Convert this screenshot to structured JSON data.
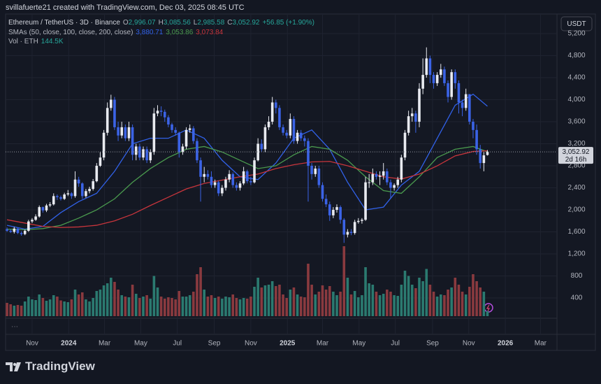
{
  "header": {
    "credit": "svillafuerte21 created with TradingView.com, Dec 03, 2025 08:45 UTC"
  },
  "chart_data": {
    "type": "candlestick",
    "title": "Ethereum / TetherUS · 3D · Binance",
    "ohlc_legend": [
      [
        "O",
        "2,996.07"
      ],
      [
        "H",
        "3,085.56"
      ],
      [
        "L",
        "2,985.58"
      ],
      [
        "C",
        "3,052.92"
      ]
    ],
    "change": "+56.85 (+1.90%)",
    "axis_unit": "USDT",
    "up_color": "#e8eaf0",
    "down_color": "#3b63e6",
    "open": [
      1650,
      1620,
      1600,
      1660,
      1580,
      1560,
      1620,
      1790,
      1820,
      1880,
      2050,
      1990,
      2080,
      2100,
      2250,
      2230,
      2200,
      2280,
      2300,
      2250,
      2550,
      2480,
      2250,
      2340,
      2380,
      2520,
      2800,
      2950,
      3400,
      3850,
      4000,
      3500,
      3350,
      3500,
      3300,
      3500,
      3000,
      3150,
      2950,
      3100,
      2900,
      3050,
      3750,
      3800,
      3780,
      3680,
      3550,
      3450,
      3400,
      3050,
      3150,
      3450,
      3480,
      3250,
      2900,
      2600,
      2650,
      2600,
      2450,
      2500,
      2300,
      2400,
      2550,
      2650,
      2450,
      2400,
      2480,
      2700,
      2520,
      2500,
      2900,
      3200,
      3100,
      3500,
      3600,
      3950,
      3850,
      3500,
      3400,
      3350,
      3650,
      3250,
      3400,
      3300,
      3250,
      2800,
      2650,
      2750,
      2450,
      2200,
      2100,
      1900,
      2000,
      2050,
      1820,
      1550,
      1600,
      1580,
      1780,
      1800,
      1820,
      2500,
      2500,
      2650,
      2600,
      2620,
      2700,
      2500,
      2400,
      2450,
      2550,
      2950,
      3400,
      3700,
      3750,
      3600,
      4200,
      4450,
      4750,
      4450,
      4300,
      4450,
      4550,
      4300,
      4050,
      4500,
      4300,
      3950,
      3850,
      4100,
      3600,
      3450,
      3100,
      2850,
      2996.07
    ],
    "high": [
      1680,
      1650,
      1690,
      1680,
      1610,
      1640,
      1820,
      1850,
      1920,
      2080,
      2060,
      2110,
      2140,
      2300,
      2280,
      2260,
      2310,
      2360,
      2320,
      2700,
      2600,
      2500,
      2380,
      2420,
      2560,
      2850,
      3050,
      3450,
      3950,
      4090,
      4050,
      3600,
      3600,
      3550,
      3600,
      3550,
      3200,
      3200,
      3150,
      3150,
      3100,
      3850,
      3900,
      3880,
      3820,
      3720,
      3580,
      3500,
      3420,
      3200,
      3500,
      3550,
      3520,
      3300,
      2950,
      2780,
      2720,
      2700,
      2550,
      2530,
      2450,
      2600,
      2720,
      2680,
      2500,
      2520,
      2780,
      2730,
      2600,
      2950,
      3300,
      3280,
      3550,
      3700,
      4050,
      4000,
      3900,
      3550,
      3450,
      3750,
      3700,
      3450,
      3450,
      3350,
      3300,
      2850,
      2800,
      2800,
      2500,
      2280,
      2150,
      2050,
      2100,
      2080,
      1850,
      1650,
      1650,
      1820,
      1850,
      1850,
      2600,
      2650,
      2750,
      2700,
      2700,
      2850,
      2750,
      2550,
      2480,
      2600,
      3000,
      3450,
      3800,
      3850,
      3800,
      4300,
      4750,
      4950,
      4800,
      4500,
      4500,
      4650,
      4600,
      4350,
      4550,
      4550,
      4350,
      4000,
      4200,
      4100,
      3650,
      3550,
      3180,
      3050,
      3085.56
    ],
    "low": [
      1600,
      1580,
      1570,
      1560,
      1530,
      1540,
      1600,
      1760,
      1800,
      1860,
      1950,
      1960,
      2050,
      2080,
      2180,
      2170,
      2180,
      2250,
      2200,
      2220,
      2420,
      2200,
      2220,
      2300,
      2350,
      2500,
      2780,
      2900,
      3350,
      3800,
      3450,
      3250,
      3300,
      3250,
      3250,
      2900,
      2900,
      2900,
      2900,
      2850,
      2850,
      3000,
      3700,
      3700,
      3600,
      3500,
      3400,
      3350,
      2950,
      3000,
      3100,
      3400,
      3200,
      2850,
      2150,
      2500,
      2550,
      2400,
      2400,
      2250,
      2250,
      2350,
      2500,
      2400,
      2350,
      2350,
      2450,
      2480,
      2450,
      2480,
      2880,
      3050,
      3050,
      3450,
      3550,
      3750,
      3450,
      3350,
      3300,
      3300,
      3200,
      3200,
      3250,
      3150,
      2150,
      2550,
      2600,
      2400,
      2150,
      2050,
      1800,
      1850,
      1950,
      1750,
      1400,
      1500,
      1540,
      1550,
      1750,
      1750,
      1800,
      2400,
      2450,
      2550,
      2450,
      2550,
      2450,
      2200,
      2350,
      2400,
      2500,
      2900,
      3350,
      3600,
      3400,
      3500,
      4100,
      4400,
      4300,
      4200,
      4250,
      4400,
      4250,
      3950,
      4000,
      4200,
      3750,
      3700,
      3800,
      3550,
      3300,
      3000,
      2750,
      2700,
      2985.58
    ],
    "close": [
      1620,
      1600,
      1660,
      1580,
      1560,
      1620,
      1790,
      1820,
      1880,
      2050,
      1990,
      2080,
      2100,
      2250,
      2230,
      2200,
      2280,
      2300,
      2250,
      2550,
      2480,
      2250,
      2340,
      2380,
      2520,
      2800,
      2950,
      3400,
      3850,
      4000,
      3500,
      3350,
      3500,
      3300,
      3500,
      3000,
      3150,
      2950,
      3100,
      2900,
      3050,
      3750,
      3800,
      3780,
      3680,
      3550,
      3450,
      3400,
      3050,
      3150,
      3450,
      3480,
      3250,
      2900,
      2600,
      2650,
      2600,
      2450,
      2500,
      2300,
      2400,
      2550,
      2650,
      2450,
      2400,
      2480,
      2700,
      2520,
      2500,
      2900,
      3200,
      3100,
      3500,
      3600,
      3950,
      3850,
      3500,
      3400,
      3350,
      3650,
      3250,
      3400,
      3300,
      3250,
      2800,
      2650,
      2750,
      2450,
      2200,
      2100,
      1900,
      2000,
      2050,
      1820,
      1550,
      1600,
      1580,
      1780,
      1800,
      1820,
      2500,
      2500,
      2650,
      2600,
      2620,
      2700,
      2500,
      2400,
      2450,
      2550,
      2950,
      3400,
      3700,
      3750,
      3600,
      4200,
      4450,
      4750,
      4450,
      4300,
      4450,
      4550,
      4300,
      4050,
      4500,
      4300,
      3950,
      3850,
      4100,
      3600,
      3450,
      3100,
      2850,
      2990,
      3052.92
    ],
    "volume": {
      "name": "Vol · ETH",
      "value_label": "144.5K",
      "ylim": [
        0,
        2200
      ],
      "up_color": "#2b7a70",
      "down_color": "#8a3a3f",
      "values": [
        380,
        340,
        300,
        320,
        300,
        420,
        560,
        480,
        460,
        620,
        520,
        440,
        480,
        600,
        560,
        450,
        420,
        400,
        480,
        760,
        620,
        680,
        480,
        420,
        520,
        720,
        760,
        880,
        940,
        1100,
        980,
        760,
        600,
        560,
        540,
        900,
        640,
        520,
        560,
        600,
        500,
        1150,
        820,
        560,
        500,
        540,
        520,
        480,
        720,
        560,
        560,
        600,
        700,
        1200,
        1400,
        760,
        560,
        600,
        520,
        560,
        500,
        560,
        540,
        620,
        520,
        480,
        520,
        500,
        560,
        840,
        1100,
        820,
        880,
        900,
        1000,
        860,
        900,
        620,
        520,
        760,
        820,
        620,
        560,
        540,
        1500,
        900,
        620,
        700,
        880,
        760,
        860,
        700,
        600,
        700,
        2000,
        1100,
        620,
        720,
        540,
        600,
        1400,
        940,
        900,
        700,
        600,
        640,
        760,
        700,
        600,
        580,
        900,
        1300,
        1150,
        900,
        800,
        1100,
        1000,
        1350,
        900,
        700,
        560,
        620,
        600,
        760,
        820,
        1100,
        900,
        700,
        620,
        840,
        1200,
        1000,
        820,
        700,
        144.5
      ]
    },
    "sma_label": "SMAs (50, close, 100, close, 200, close)",
    "series": [
      {
        "color": "#3161e8",
        "value_label": "3,880.71",
        "x": [
          0,
          5,
          10,
          15,
          20,
          25,
          30,
          35,
          40,
          45,
          50,
          55,
          60,
          65,
          70,
          75,
          80,
          85,
          90,
          95,
          100,
          105,
          110,
          115,
          120,
          125,
          130,
          134
        ],
        "values": [
          1720,
          1650,
          1700,
          1950,
          2150,
          2300,
          2700,
          3200,
          3300,
          3300,
          3450,
          3300,
          2900,
          2600,
          2550,
          2850,
          3300,
          3450,
          3100,
          2500,
          2000,
          2050,
          2450,
          2700,
          3300,
          3900,
          4100,
          3880.71
        ]
      },
      {
        "color": "#4a9a4e",
        "value_label": "3,053.86",
        "x": [
          0,
          5,
          10,
          15,
          20,
          25,
          30,
          35,
          40,
          45,
          50,
          55,
          60,
          65,
          70,
          75,
          80,
          85,
          90,
          95,
          100,
          105,
          110,
          115,
          120,
          125,
          130,
          134
        ],
        "values": [
          1650,
          1640,
          1660,
          1720,
          1850,
          2000,
          2200,
          2500,
          2750,
          2950,
          3100,
          3150,
          3050,
          2900,
          2750,
          2800,
          3000,
          3150,
          3100,
          2900,
          2600,
          2350,
          2300,
          2600,
          2950,
          3100,
          3150,
          3053.86
        ]
      },
      {
        "color": "#c8353c",
        "value_label": "3,073.84",
        "x": [
          0,
          5,
          10,
          15,
          20,
          25,
          30,
          35,
          40,
          45,
          50,
          55,
          60,
          65,
          70,
          75,
          80,
          85,
          90,
          95,
          100,
          105,
          110,
          115,
          120,
          125,
          130,
          134
        ],
        "values": [
          1820,
          1760,
          1700,
          1680,
          1690,
          1720,
          1800,
          1920,
          2080,
          2230,
          2380,
          2480,
          2540,
          2600,
          2650,
          2750,
          2820,
          2870,
          2880,
          2800,
          2700,
          2600,
          2560,
          2650,
          2800,
          2980,
          3060,
          3073.84
        ]
      }
    ],
    "xlim": [
      -0.4,
      153.4
    ],
    "xticks": [
      {
        "value": 7,
        "label": "Nov"
      },
      {
        "value": 17.2,
        "label": "2024"
      },
      {
        "value": 27.2,
        "label": "Mar"
      },
      {
        "value": 37.3,
        "label": "May"
      },
      {
        "value": 47.5,
        "label": "Jul"
      },
      {
        "value": 57.8,
        "label": "Sep"
      },
      {
        "value": 68,
        "label": "Nov"
      },
      {
        "value": 78.2,
        "label": "2025"
      },
      {
        "value": 88,
        "label": "Mar"
      },
      {
        "value": 98.2,
        "label": "May"
      },
      {
        "value": 108.3,
        "label": "Jul"
      },
      {
        "value": 118.7,
        "label": "Sep"
      },
      {
        "value": 128.8,
        "label": "Nov"
      },
      {
        "value": 139,
        "label": "2026"
      },
      {
        "value": 148.8,
        "label": "Mar"
      }
    ],
    "ylim": [
      -260,
      5556
    ],
    "yticks": [
      400,
      800,
      {
        "value": 1200,
        "label": "1,200"
      },
      {
        "value": 1600,
        "label": "1,600"
      },
      {
        "value": 2000,
        "label": "2,000"
      },
      {
        "value": 2400,
        "label": "2,400"
      },
      {
        "value": 2800,
        "label": "2,800"
      },
      {
        "value": 3200,
        "label": "3,200"
      },
      {
        "value": 3600,
        "label": "3,600"
      },
      {
        "value": 4000,
        "label": "4,000"
      },
      {
        "value": 4400,
        "label": "4,400"
      },
      {
        "value": 4800,
        "label": "4,800"
      },
      {
        "value": 5200,
        "label": "5,200"
      }
    ],
    "last_price": {
      "value": 3052.92,
      "label": "3,052.92",
      "countdown": "2d 16h"
    },
    "grid": true
  },
  "pane_menu": "···",
  "footer": {
    "brand": "TradingView"
  }
}
